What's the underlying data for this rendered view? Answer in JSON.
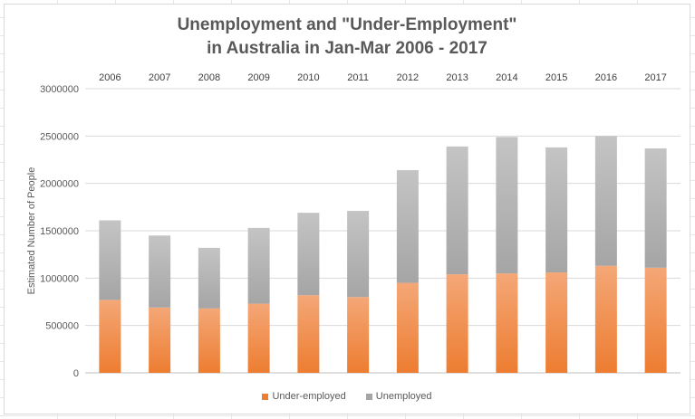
{
  "chart_data": {
    "type": "bar",
    "stacked": true,
    "title_lines": [
      "Unemployment and \"Under-Employment\"",
      "in Australia in Jan-Mar 2006 - 2017"
    ],
    "xlabel": "",
    "ylabel": "Estimated Number of People",
    "categories": [
      "2006",
      "2007",
      "2008",
      "2009",
      "2010",
      "2011",
      "2012",
      "2013",
      "2014",
      "2015",
      "2016",
      "2017"
    ],
    "ylim": [
      0,
      3000000
    ],
    "yticks": [
      0,
      500000,
      1000000,
      1500000,
      2000000,
      2500000,
      3000000
    ],
    "ytick_labels": [
      "0",
      "500000",
      "1000000",
      "1500000",
      "2000000",
      "2500000",
      "3000000"
    ],
    "x_axis_position": "top",
    "grid": true,
    "legend_position": "bottom",
    "series": [
      {
        "name": "Under-employed",
        "color": "#ed7d31",
        "values": [
          770000,
          690000,
          680000,
          730000,
          820000,
          800000,
          950000,
          1040000,
          1050000,
          1060000,
          1130000,
          1110000
        ]
      },
      {
        "name": "Unemployed",
        "color": "#a5a5a5",
        "values": [
          840000,
          760000,
          640000,
          800000,
          870000,
          910000,
          1190000,
          1350000,
          1440000,
          1320000,
          1370000,
          1260000
        ]
      }
    ]
  }
}
